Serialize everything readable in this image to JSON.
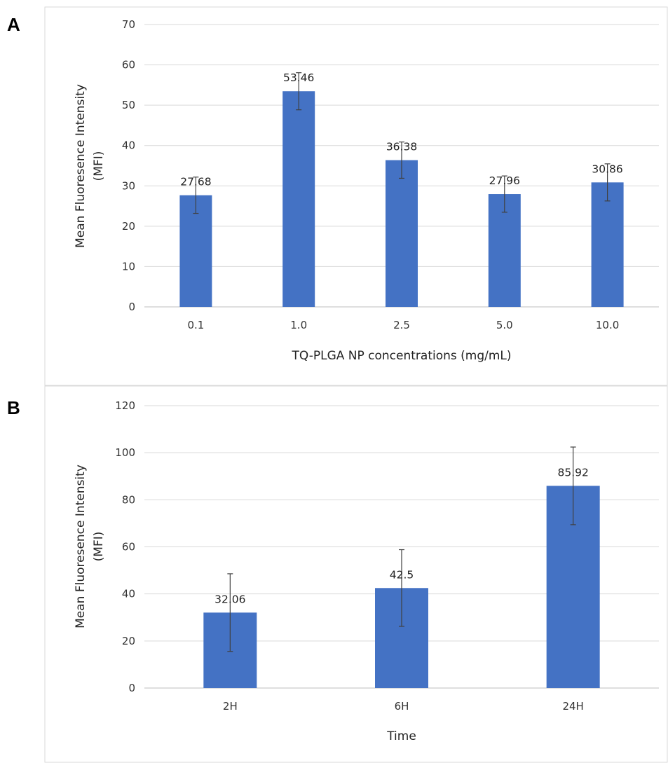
{
  "chart_data": [
    {
      "panel": "A",
      "type": "bar",
      "categories": [
        "0.1",
        "1.0",
        "2.5",
        "5.0",
        "10.0"
      ],
      "values": [
        27.68,
        53.46,
        36.38,
        27.96,
        30.86
      ],
      "value_labels": [
        "27.68",
        "53.46",
        "36.38",
        "27.96",
        "30.86"
      ],
      "error": [
        4.5,
        4.6,
        4.5,
        4.5,
        4.6
      ],
      "xlabel": "TQ-PLGA NP concentrations (mg/mL)",
      "ylabel_lines": [
        "Mean Fluoresence Intensity",
        "(MFI)"
      ],
      "ylim": [
        0,
        70
      ],
      "yticks": [
        0,
        10,
        20,
        30,
        40,
        50,
        60,
        70
      ],
      "grid": true,
      "bar_color": "#4472C4"
    },
    {
      "panel": "B",
      "type": "bar",
      "categories": [
        "2H",
        "6H",
        "24H"
      ],
      "values": [
        32.06,
        42.5,
        85.92
      ],
      "value_labels": [
        "32.06",
        "42.5",
        "85.92"
      ],
      "error": [
        16.5,
        16.3,
        16.5
      ],
      "xlabel": "Time",
      "ylabel_lines": [
        "Mean Fluoresence Intensity",
        "(MFI)"
      ],
      "ylim": [
        0,
        120
      ],
      "yticks": [
        0,
        20,
        40,
        60,
        80,
        100,
        120
      ],
      "grid": true,
      "bar_color": "#4472C4"
    }
  ]
}
